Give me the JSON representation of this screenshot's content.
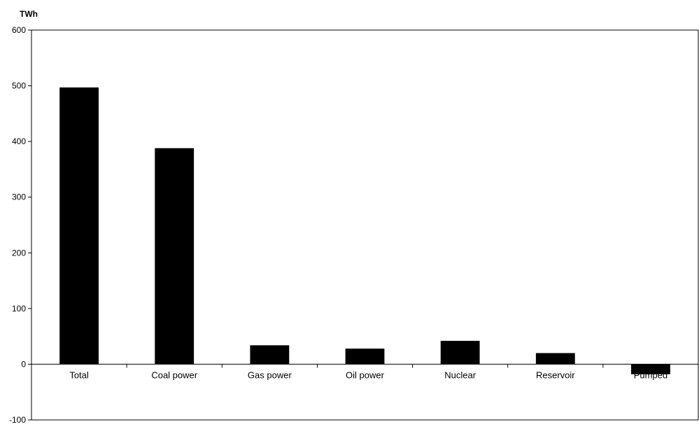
{
  "chart_data": {
    "type": "bar",
    "unit_label": "TWh",
    "categories": [
      "Total",
      "Coal power",
      "Gas power",
      "Oil power",
      "Nuclear",
      "Reservoir",
      "Pumped"
    ],
    "values": [
      497,
      388,
      34,
      28,
      42,
      20,
      -18
    ],
    "ylim": [
      -100,
      600
    ],
    "yticks": [
      -100,
      0,
      100,
      200,
      300,
      400,
      500,
      600
    ],
    "grid": false,
    "legend": "none",
    "bar_color": "#000000"
  }
}
